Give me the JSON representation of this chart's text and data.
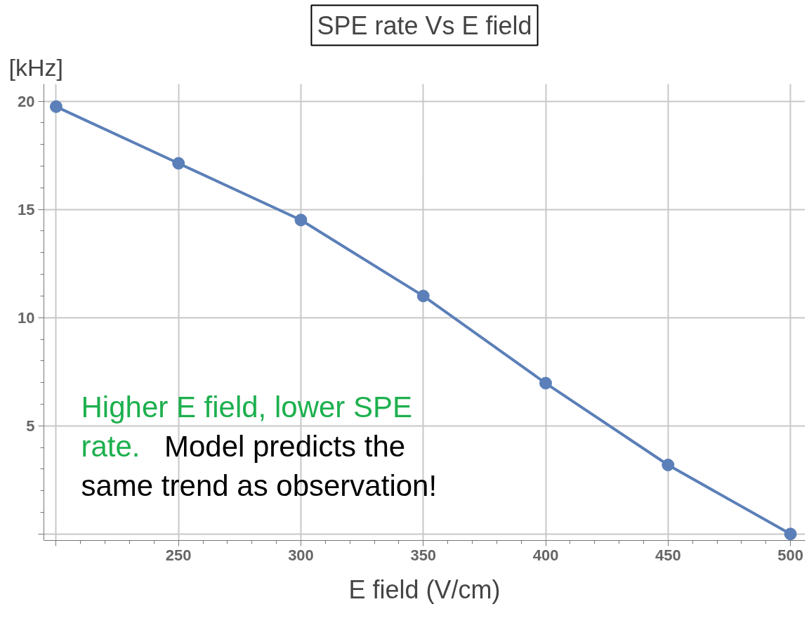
{
  "chart_data": {
    "type": "line",
    "title": "SPE rate Vs E field",
    "xlabel": "E field (V/cm)",
    "ylabel": "[kHz]",
    "x": [
      200,
      250,
      300,
      350,
      400,
      450,
      500
    ],
    "series": [
      {
        "color": "#5b7fb8",
        "values": [
          19.75,
          17.13,
          14.51,
          11.0,
          6.97,
          3.19,
          0.0
        ]
      }
    ],
    "xlim": [
      195,
      506
    ],
    "ylim": [
      -0.3,
      20.8
    ],
    "xticks": [
      {
        "value": 200,
        "label": null
      },
      250,
      300,
      350,
      400,
      450,
      500
    ],
    "yticks": [
      {
        "value": 0,
        "label": null
      },
      5,
      10,
      15,
      20
    ],
    "grid": true,
    "marker": "circle",
    "line_style": "solid",
    "annotations": [
      "Higher E field, lower SPE rate.",
      "Model predicts the same trend as observation!"
    ]
  }
}
